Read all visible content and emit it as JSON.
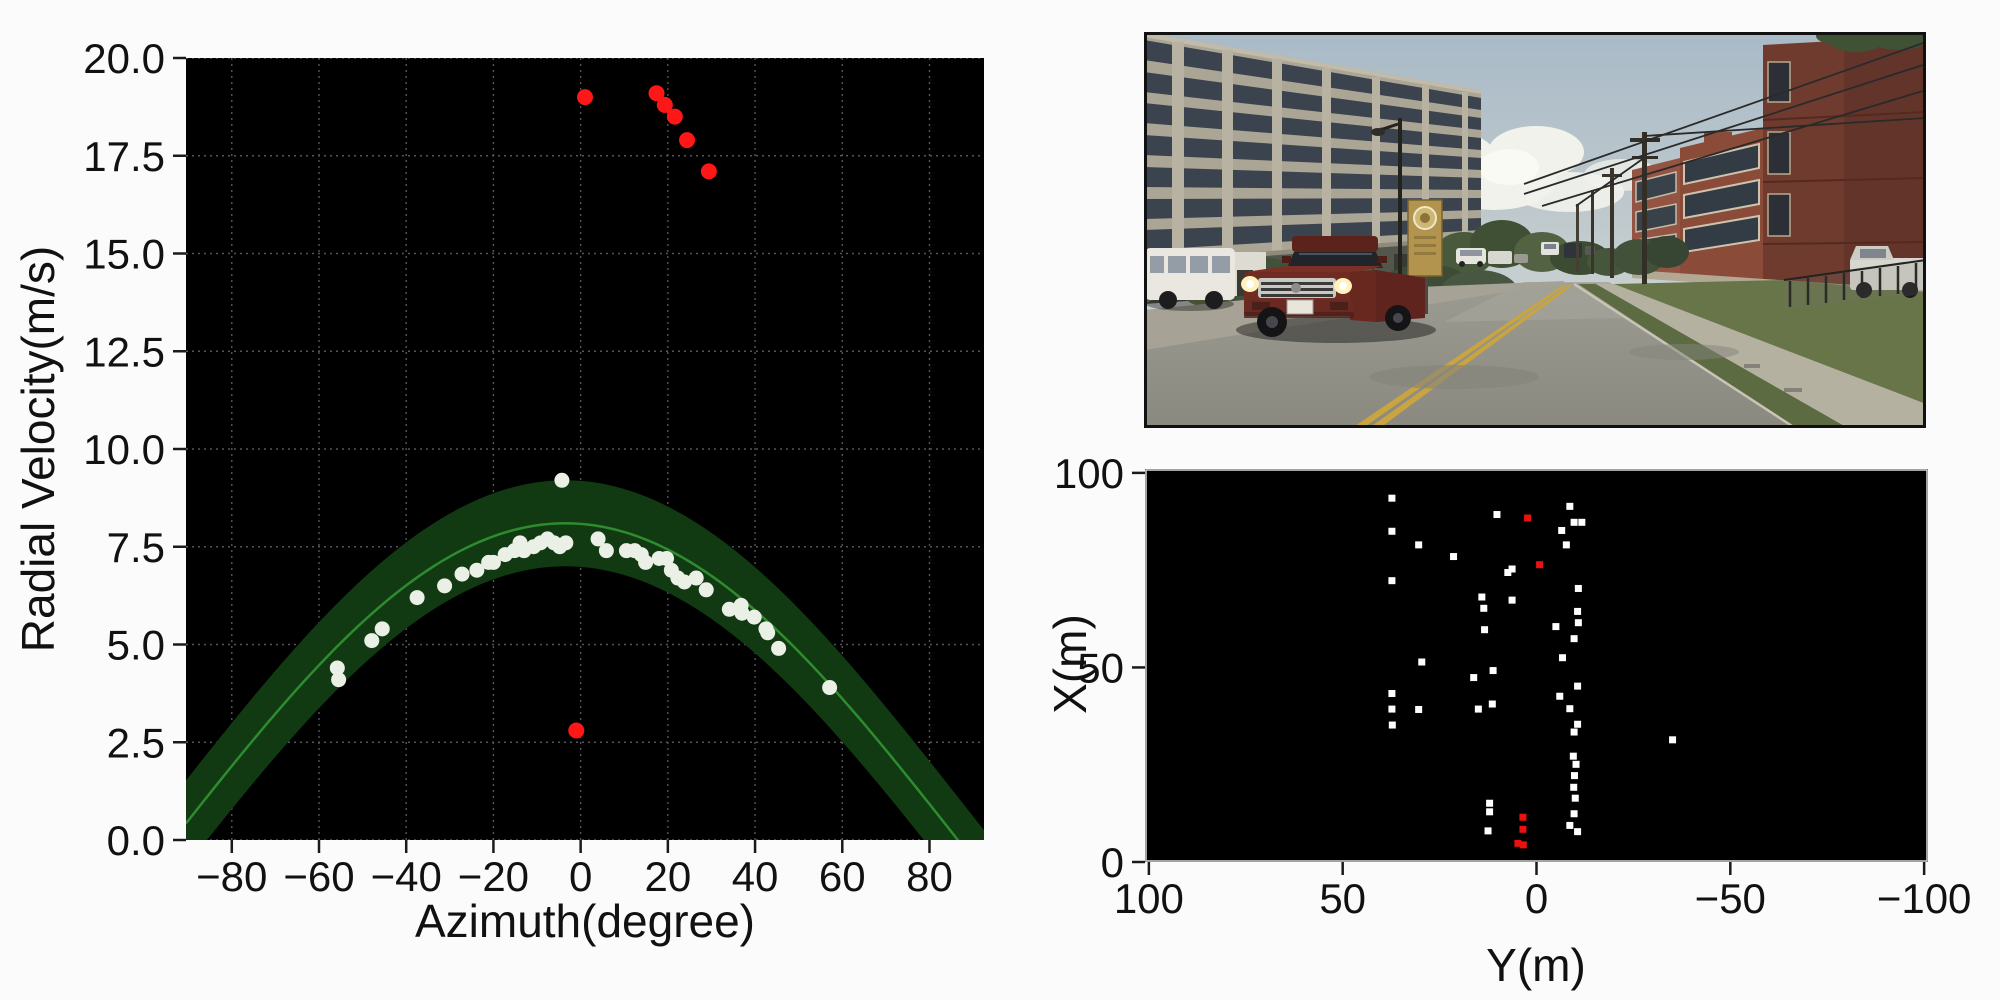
{
  "figure": {
    "background": "#fbfbfb",
    "description": "Radar ego-motion figure: radial velocity vs azimuth scatter with cosine fit band, front-camera photo, and bird's-eye X-Y radar point plot"
  },
  "chart_data": [
    {
      "type": "scatter",
      "title": "",
      "xlabel": "Azimuth(degree)",
      "ylabel": "Radial Velocity(m/s)",
      "xlim": [
        -90.5,
        92.5
      ],
      "ylim": [
        0,
        20
      ],
      "xticks": [
        -80,
        -60,
        -40,
        -20,
        0,
        20,
        40,
        60,
        80
      ],
      "xtick_labels": [
        "−80",
        "−60",
        "−40",
        "−20",
        "0",
        "20",
        "40",
        "60",
        "80"
      ],
      "yticks": [
        0,
        2.5,
        5,
        7.5,
        10,
        12.5,
        15,
        17.5,
        20
      ],
      "ytick_labels": [
        "0.0",
        "2.5",
        "5.0",
        "7.5",
        "10.0",
        "12.5",
        "15.0",
        "17.5",
        "20.0"
      ],
      "grid": true,
      "grid_color": "#55555a",
      "plot_bg": "#000000",
      "legend": "none",
      "fit_curve": {
        "model": "v = A*cos(azimuth - phase)",
        "amplitude": 8.1,
        "phase_deg": -3.5,
        "band_halfwidth": 1.1,
        "line_color": "#2e8b30",
        "band_color": "#123a12"
      },
      "series": [
        {
          "name": "stationary-inliers",
          "marker": "circle",
          "size": 15,
          "color": "#eaf0e5",
          "points": [
            [
              -55.8,
              4.4
            ],
            [
              -55.5,
              4.1
            ],
            [
              -47.9,
              5.1
            ],
            [
              -45.5,
              5.4
            ],
            [
              -37.5,
              6.2
            ],
            [
              -31.2,
              6.5
            ],
            [
              -27.2,
              6.8
            ],
            [
              -23.8,
              6.9
            ],
            [
              -21.1,
              7.1
            ],
            [
              -20.0,
              7.1
            ],
            [
              -17.3,
              7.3
            ],
            [
              -15.2,
              7.4
            ],
            [
              -13.9,
              7.6
            ],
            [
              -13.0,
              7.4
            ],
            [
              -10.8,
              7.5
            ],
            [
              -9.2,
              7.6
            ],
            [
              -7.6,
              7.7
            ],
            [
              -6.1,
              7.6
            ],
            [
              -4.8,
              7.5
            ],
            [
              -4.3,
              9.2
            ],
            [
              -3.4,
              7.6
            ],
            [
              4.0,
              7.7
            ],
            [
              5.9,
              7.4
            ],
            [
              10.5,
              7.4
            ],
            [
              12.4,
              7.4
            ],
            [
              13.9,
              7.3
            ],
            [
              14.9,
              7.1
            ],
            [
              18.0,
              7.2
            ],
            [
              19.7,
              7.2
            ],
            [
              20.8,
              6.9
            ],
            [
              22.3,
              6.7
            ],
            [
              23.8,
              6.6
            ],
            [
              26.5,
              6.7
            ],
            [
              28.8,
              6.4
            ],
            [
              34.1,
              5.9
            ],
            [
              36.8,
              6.0
            ],
            [
              37.0,
              5.8
            ],
            [
              39.8,
              5.7
            ],
            [
              42.5,
              5.4
            ],
            [
              42.9,
              5.3
            ],
            [
              45.4,
              4.9
            ],
            [
              57.1,
              3.9
            ]
          ]
        },
        {
          "name": "moving-outliers",
          "marker": "circle",
          "size": 16,
          "color": "#ff1717",
          "points": [
            [
              1.0,
              19.0
            ],
            [
              17.4,
              19.1
            ],
            [
              19.3,
              18.8
            ],
            [
              21.6,
              18.5
            ],
            [
              24.4,
              17.9
            ],
            [
              29.4,
              17.1
            ],
            [
              -1.0,
              2.8
            ]
          ]
        }
      ]
    },
    {
      "type": "scatter",
      "title": "",
      "xlabel": "Y(m)",
      "ylabel": "X(m)",
      "xlim": [
        101,
        -101
      ],
      "ylim": [
        0,
        101
      ],
      "xticks": [
        100,
        50,
        0,
        -50,
        -100
      ],
      "xtick_labels": [
        "100",
        "50",
        "0",
        "−50",
        "−100"
      ],
      "yticks": [
        0,
        50,
        100
      ],
      "ytick_labels": [
        "0",
        "50",
        "100"
      ],
      "grid": false,
      "plot_bg": "#000000",
      "spine_color": "#d9d9d9",
      "legend": "none",
      "series": [
        {
          "name": "static-targets",
          "marker": "square",
          "size": 7,
          "color": "#ffffff",
          "points": [
            [
              37.3,
              93.5
            ],
            [
              10.2,
              89.3
            ],
            [
              37.3,
              85.0
            ],
            [
              30.4,
              81.5
            ],
            [
              21.4,
              78.5
            ],
            [
              6.3,
              75.3
            ],
            [
              7.4,
              74.4
            ],
            [
              37.3,
              72.3
            ],
            [
              14.1,
              68.1
            ],
            [
              6.3,
              67.3
            ],
            [
              13.6,
              65.2
            ],
            [
              13.4,
              59.7
            ],
            [
              29.6,
              51.4
            ],
            [
              11.2,
              49.2
            ],
            [
              16.2,
              47.4
            ],
            [
              37.3,
              43.3
            ],
            [
              37.3,
              39.3
            ],
            [
              30.4,
              39.2
            ],
            [
              15.0,
              39.3
            ],
            [
              11.4,
              40.6
            ],
            [
              37.2,
              35.2
            ],
            [
              12.1,
              15.1
            ],
            [
              12.1,
              12.9
            ],
            [
              12.5,
              8.0
            ],
            [
              -8.6,
              91.4
            ],
            [
              -9.7,
              87.3
            ],
            [
              -11.7,
              87.3
            ],
            [
              -6.5,
              85.2
            ],
            [
              -7.7,
              81.5
            ],
            [
              -10.8,
              70.3
            ],
            [
              -10.6,
              64.4
            ],
            [
              -10.8,
              61.5
            ],
            [
              -5.0,
              60.5
            ],
            [
              -9.7,
              57.4
            ],
            [
              -6.7,
              52.5
            ],
            [
              -10.6,
              45.2
            ],
            [
              -6.0,
              42.6
            ],
            [
              -8.6,
              39.4
            ],
            [
              -10.6,
              35.4
            ],
            [
              -9.7,
              33.4
            ],
            [
              -35.1,
              31.4
            ],
            [
              -9.5,
              27.2
            ],
            [
              -10.2,
              25.1
            ],
            [
              -9.8,
              22.2
            ],
            [
              -9.6,
              19.2
            ],
            [
              -10.0,
              16.4
            ],
            [
              -9.7,
              12.4
            ],
            [
              -8.6,
              9.4
            ],
            [
              -10.6,
              7.8
            ]
          ]
        },
        {
          "name": "moving-targets",
          "marker": "square",
          "size": 7,
          "color": "#e81212",
          "points": [
            [
              2.3,
              88.4
            ],
            [
              -0.8,
              76.4
            ],
            [
              3.5,
              11.5
            ],
            [
              3.5,
              8.4
            ],
            [
              4.8,
              4.8
            ],
            [
              3.4,
              4.4
            ]
          ]
        }
      ]
    }
  ],
  "camera_image": {
    "alt": "Front camera view: two-way street with double yellow center line, oncoming dark-red pickup truck, parked white van on the left, large beige office building on the left, brick building, utility poles and power lines on the right",
    "sky_color": "#b5c2cb",
    "road_color": "#8f8e85",
    "lane_line_color": "#c9a43f",
    "truck_color": "#702b22",
    "left_building_color": "#aaa595",
    "right_building_color": "#6f3b2e",
    "grass_color": "#5d6b42"
  }
}
